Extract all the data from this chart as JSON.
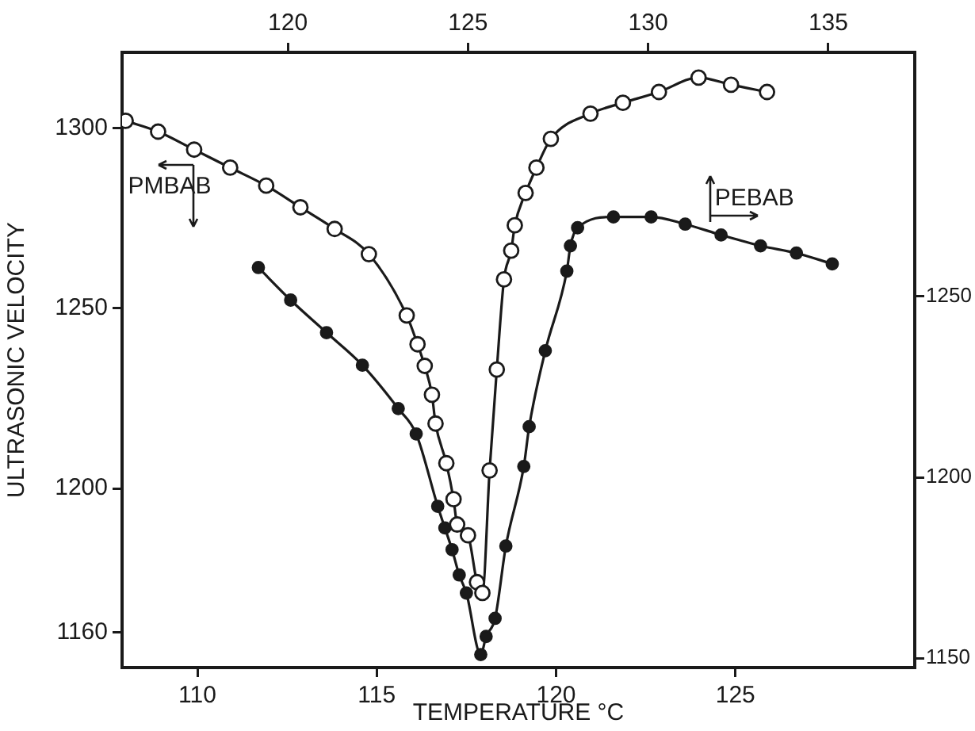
{
  "chart_data": {
    "type": "line",
    "xlabel": "TEMPERATURE °C",
    "ylabel": "ULTRASONIC VELOCITY",
    "xlim": [
      107.9,
      130
    ],
    "xticks": [
      110,
      115,
      120,
      125
    ],
    "x2lim": [
      115.4,
      137.4
    ],
    "x2ticks": [
      120,
      125,
      130,
      135
    ],
    "ylim": [
      1150.3,
      1321
    ],
    "yticks": [
      1160,
      1200,
      1250,
      1300
    ],
    "y2lim": [
      1147.4,
      1317.5
    ],
    "y2ticks": [
      1150,
      1200,
      1250
    ],
    "grid": false,
    "legend": "top left",
    "marker": "circle",
    "line_style": "solid",
    "series": [
      {
        "name": "PMBAB",
        "color": "#1a1a1a",
        "axis": "x2",
        "x": [
          115.5,
          116.4,
          117.4,
          118.4,
          119.4,
          120.35,
          121.3,
          122.25,
          123.3,
          123.6,
          123.8,
          124.0,
          124.1,
          124.4,
          124.6,
          124.7,
          125.0,
          125.25,
          125.4,
          125.6,
          125.8,
          126.0,
          126.2,
          126.3,
          126.6,
          126.9,
          127.3,
          128.4,
          129.3,
          130.3,
          131.4,
          132.3,
          133.3
        ],
        "values": [
          1302,
          1299,
          1294,
          1289,
          1284,
          1278,
          1272,
          1265,
          1248,
          1240,
          1234,
          1226,
          1218,
          1207,
          1197,
          1190,
          1187,
          1174,
          1171,
          1205,
          1233,
          1258,
          1266,
          1273,
          1282,
          1289,
          1297,
          1304,
          1307,
          1310,
          1314,
          1312,
          1310
        ]
      },
      {
        "name": "PEBAB",
        "color": "#1a1a1a",
        "axis": "y2",
        "x": [
          111.7,
          112.6,
          113.6,
          114.6,
          115.6,
          116.1,
          116.7,
          116.9,
          117.1,
          117.3,
          117.5,
          117.9,
          118.05,
          118.3,
          118.6,
          119.1,
          119.25,
          119.7,
          120.3,
          120.4,
          120.6,
          121.6,
          122.65,
          123.6,
          124.6,
          125.7,
          126.7,
          127.7
        ],
        "values": [
          1258,
          1249,
          1240,
          1231,
          1219,
          1212,
          1192,
          1186,
          1180,
          1173,
          1168,
          1151,
          1156,
          1161,
          1181,
          1203,
          1214,
          1235,
          1257,
          1264,
          1269,
          1272,
          1272,
          1270,
          1267,
          1264,
          1262,
          1259
        ]
      }
    ]
  }
}
